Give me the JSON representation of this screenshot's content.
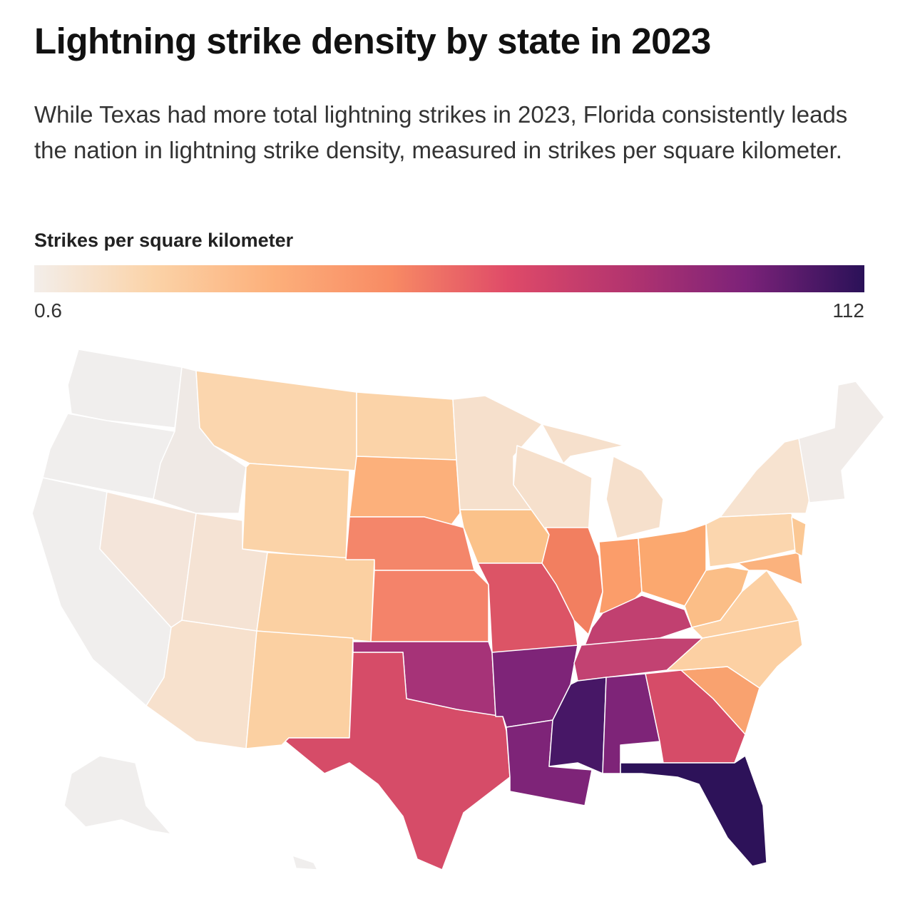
{
  "header": {
    "title": "Lightning strike density by state in 2023",
    "subtitle": "While Texas had more total lightning strikes in 2023, Florida consistently leads the nation in lightning strike density, measured in strikes per square kilometer."
  },
  "legend": {
    "title": "Strikes per square kilometer",
    "min": 0.6,
    "max": 112,
    "colors": [
      "#f3eeea",
      "#fbd3a8",
      "#fcb07b",
      "#f88b64",
      "#df4a68",
      "#b3346f",
      "#7c2279",
      "#2a1158"
    ]
  }
}
